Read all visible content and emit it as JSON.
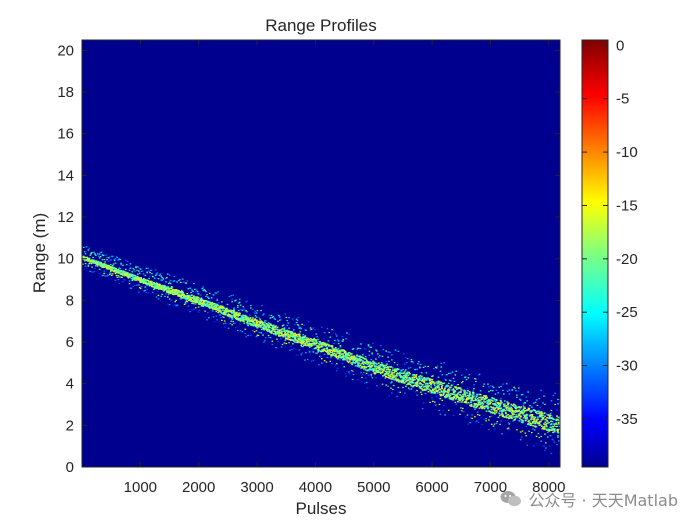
{
  "chart_data": {
    "type": "heatmap",
    "title": "Range Profiles",
    "xlabel": "Pulses",
    "ylabel": "Range (m)",
    "xlim": [
      0,
      8192
    ],
    "ylim": [
      0,
      20.5
    ],
    "x_ticks": [
      1000,
      2000,
      3000,
      4000,
      5000,
      6000,
      7000,
      8000
    ],
    "y_ticks": [
      0,
      2,
      4,
      6,
      8,
      10,
      12,
      14,
      16,
      18,
      20
    ],
    "colormap": "jet",
    "background_color": "#00008f",
    "colorbar": {
      "range": [
        -39.5,
        0.5
      ],
      "ticks": [
        0,
        -5,
        -10,
        -15,
        -20,
        -25,
        -30,
        -35
      ]
    },
    "main_trace": {
      "x": [
        0,
        1000,
        2000,
        3000,
        4000,
        5000,
        6000,
        7000,
        8192
      ],
      "y": [
        10.1,
        9.0,
        8.0,
        6.9,
        5.9,
        4.8,
        3.9,
        3.0,
        2.0
      ]
    },
    "echo_traces": [
      {
        "offset": 0.45,
        "level": -28
      },
      {
        "offset": 0.3,
        "level": -22
      },
      {
        "offset": -0.2,
        "level": -18
      },
      {
        "offset": -0.4,
        "level": -30
      }
    ]
  },
  "watermark": {
    "text": "公众号 · 天天Matlab",
    "icon": "wechat-icon"
  }
}
